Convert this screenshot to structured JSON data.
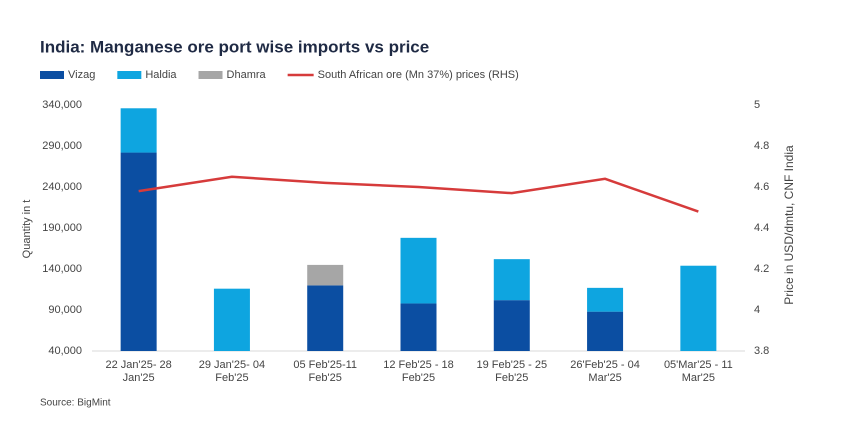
{
  "chart_data": {
    "type": "bar",
    "title": "India: Manganese ore port wise imports vs price",
    "y_label": "Quantity in t",
    "y2_label": "Price in USD/dmtu, CNF India",
    "source": "Source: BigMint",
    "stacked": true,
    "grid": false,
    "legend": "top",
    "categories": [
      "22 Jan'25- 28 Jan'25",
      "29 Jan'25- 04 Feb'25",
      "05 Feb'25-11 Feb'25",
      "12 Feb'25 - 18 Feb'25",
      "19 Feb'25 - 25 Feb'25",
      "26'Feb'25 - 04 Mar'25",
      "05'Mar'25 - 11 Mar'25"
    ],
    "series": [
      {
        "name": "Vizag",
        "type": "bar",
        "color": "#0b4ea2",
        "values": [
          242000,
          null,
          80000,
          58000,
          62000,
          48000,
          null
        ]
      },
      {
        "name": "Haldia",
        "type": "bar",
        "color": "#0ea5e0",
        "values": [
          54000,
          76000,
          null,
          80000,
          50000,
          29000,
          104000
        ]
      },
      {
        "name": "Dhamra",
        "type": "bar",
        "color": "#a6a6a6",
        "values": [
          null,
          null,
          25000,
          null,
          null,
          null,
          null
        ]
      },
      {
        "name": "South African ore (Mn 37%) prices (RHS)",
        "type": "line",
        "axis": "y2",
        "color": "#d63b3b",
        "values": [
          4.58,
          4.65,
          4.62,
          4.6,
          4.57,
          4.64,
          4.48
        ]
      }
    ],
    "ylim": [
      40000,
      340000
    ],
    "yticks": [
      {
        "value": 40000,
        "label": "40,000"
      },
      {
        "value": 90000,
        "label": "90,000"
      },
      {
        "value": 140000,
        "label": "140,000"
      },
      {
        "value": 190000,
        "label": "190,000"
      },
      {
        "value": 240000,
        "label": "240,000"
      },
      {
        "value": 290000,
        "label": "290,000"
      },
      {
        "value": 340000,
        "label": "340,000"
      }
    ],
    "y2lim": [
      3.8,
      5
    ],
    "y2ticks": [
      3.8,
      4,
      4.2,
      4.4,
      4.6,
      4.8,
      5
    ]
  }
}
